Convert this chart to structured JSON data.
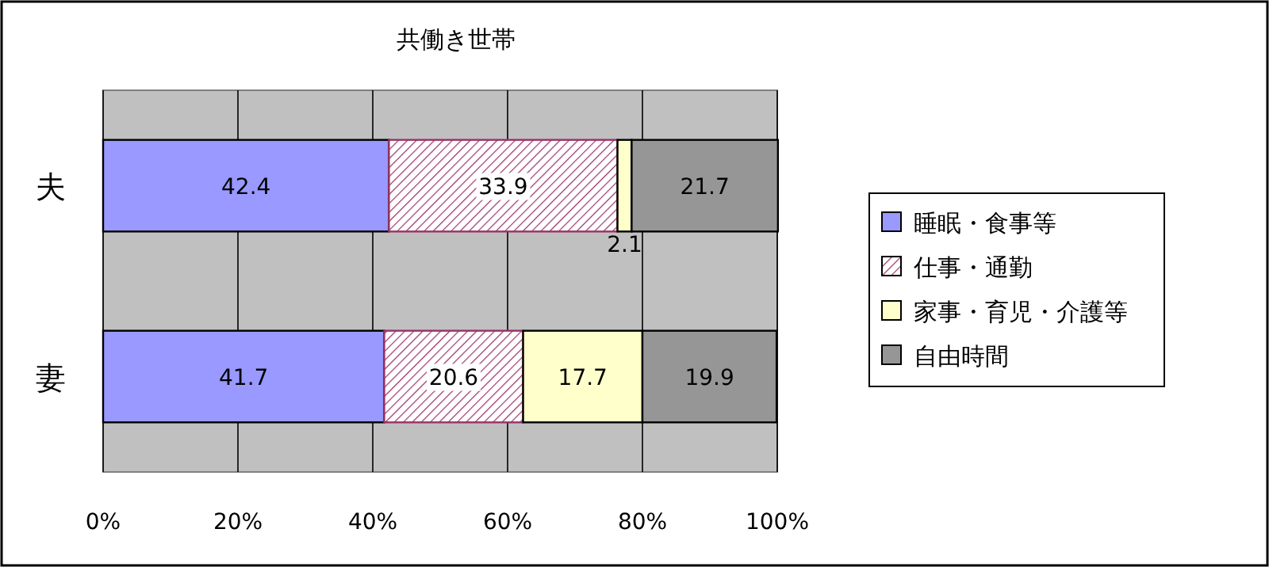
{
  "chart_data": {
    "type": "bar",
    "orientation": "horizontal",
    "stacked": true,
    "title": "共働き世帯",
    "categories": [
      "夫",
      "妻"
    ],
    "series": [
      {
        "name": "睡眠・食事等",
        "color": "#9999ff",
        "values": [
          42.4,
          41.7
        ]
      },
      {
        "name": "仕事・通勤",
        "color": "#993366",
        "values": [
          33.9,
          20.6
        ]
      },
      {
        "name": "家事・育児・介護等",
        "color": "#ffffcc",
        "values": [
          2.1,
          17.7
        ]
      },
      {
        "name": "自由時間",
        "color": "#969696",
        "values": [
          21.7,
          19.9
        ]
      }
    ],
    "xlim": [
      0,
      100
    ],
    "xticks": [
      {
        "value": 0,
        "label": "0%"
      },
      {
        "value": 20,
        "label": "20%"
      },
      {
        "value": 40,
        "label": "40%"
      },
      {
        "value": 60,
        "label": "60%"
      },
      {
        "value": 80,
        "label": "80%"
      },
      {
        "value": 100,
        "label": "100%"
      }
    ],
    "grid": "x",
    "legend": "right",
    "data_labels": true
  }
}
